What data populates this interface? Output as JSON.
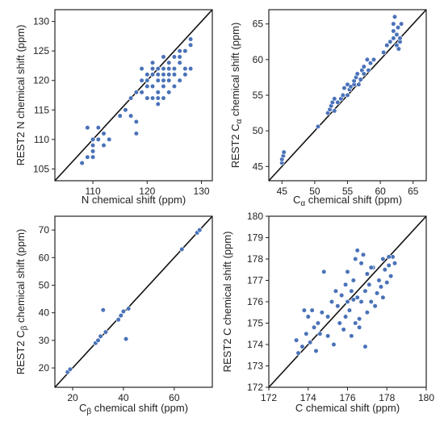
{
  "chart_data": [
    {
      "type": "scatter",
      "xlabel": "N chemical shift (ppm)",
      "ylabel": "REST2 N chemical shift (ppm)",
      "xlim": [
        103,
        132
      ],
      "ylim": [
        103,
        132
      ],
      "xticks": [
        "110",
        "120",
        "130"
      ],
      "yticks": [
        "105",
        "110",
        "115",
        "120",
        "125",
        "130"
      ],
      "reference_line": "y = x",
      "points": [
        [
          108,
          106
        ],
        [
          109,
          107
        ],
        [
          110,
          107
        ],
        [
          110,
          108
        ],
        [
          110,
          109
        ],
        [
          110,
          110
        ],
        [
          111,
          110
        ],
        [
          112,
          109
        ],
        [
          113,
          110
        ],
        [
          112,
          111
        ],
        [
          109,
          112
        ],
        [
          111,
          112
        ],
        [
          115,
          114
        ],
        [
          116,
          115
        ],
        [
          117,
          114
        ],
        [
          118,
          113
        ],
        [
          117,
          117
        ],
        [
          118,
          118
        ],
        [
          119,
          118
        ],
        [
          120,
          117
        ],
        [
          120,
          119
        ],
        [
          120,
          120
        ],
        [
          121,
          119
        ],
        [
          121,
          121
        ],
        [
          121,
          117
        ],
        [
          122,
          118
        ],
        [
          122,
          120
        ],
        [
          122,
          121
        ],
        [
          122,
          122
        ],
        [
          123,
          117
        ],
        [
          123,
          119
        ],
        [
          123,
          120
        ],
        [
          123,
          121
        ],
        [
          123,
          122
        ],
        [
          124,
          118
        ],
        [
          124,
          120
        ],
        [
          124,
          121
        ],
        [
          124,
          122
        ],
        [
          124,
          123
        ],
        [
          125,
          119
        ],
        [
          125,
          121
        ],
        [
          125,
          122
        ],
        [
          125,
          124
        ],
        [
          126,
          120
        ],
        [
          126,
          123
        ],
        [
          126,
          124
        ],
        [
          127,
          121
        ],
        [
          127,
          122
        ],
        [
          127,
          125
        ],
        [
          128,
          122
        ],
        [
          128,
          126
        ],
        [
          128,
          127
        ],
        [
          119,
          122
        ],
        [
          118,
          111
        ],
        [
          126,
          125
        ],
        [
          120,
          121
        ],
        [
          121,
          123
        ],
        [
          122,
          116
        ],
        [
          122,
          117
        ],
        [
          119,
          120
        ],
        [
          121,
          122
        ],
        [
          123,
          124
        ]
      ]
    },
    {
      "type": "scatter",
      "xlabel": "C_α chemical shift (ppm)",
      "ylabel": "REST2 C_α chemical shift (ppm)",
      "xlim": [
        43,
        67
      ],
      "ylim": [
        43,
        67
      ],
      "xticks": [
        "45",
        "50",
        "55",
        "60",
        "65"
      ],
      "yticks": [
        "45",
        "50",
        "55",
        "60",
        "65"
      ],
      "reference_line": "y = x",
      "points": [
        [
          45,
          45.5
        ],
        [
          45,
          46
        ],
        [
          45.2,
          46.5
        ],
        [
          45.3,
          47
        ],
        [
          50.5,
          50.6
        ],
        [
          52,
          52.5
        ],
        [
          52.3,
          53
        ],
        [
          52.5,
          53.5
        ],
        [
          52.7,
          54
        ],
        [
          53,
          54.5
        ],
        [
          53,
          52.8
        ],
        [
          53.5,
          54
        ],
        [
          54,
          54.5
        ],
        [
          54.3,
          55
        ],
        [
          54.5,
          56
        ],
        [
          55,
          55
        ],
        [
          55,
          56.5
        ],
        [
          55.3,
          55.8
        ],
        [
          55.5,
          56.2
        ],
        [
          56,
          56.5
        ],
        [
          56,
          57
        ],
        [
          56.3,
          57.5
        ],
        [
          56.5,
          58
        ],
        [
          56.7,
          56.5
        ],
        [
          57,
          57.2
        ],
        [
          57.2,
          58.5
        ],
        [
          57.5,
          58
        ],
        [
          57.5,
          59
        ],
        [
          58,
          60
        ],
        [
          58.2,
          58.5
        ],
        [
          58.5,
          59.5
        ],
        [
          59,
          60
        ],
        [
          60.5,
          61
        ],
        [
          61,
          62
        ],
        [
          61.5,
          62.5
        ],
        [
          62,
          63
        ],
        [
          62,
          64
        ],
        [
          62,
          65
        ],
        [
          62.2,
          66
        ],
        [
          62.5,
          63.5
        ],
        [
          62.5,
          62
        ],
        [
          62.7,
          64.5
        ],
        [
          62.8,
          61.5
        ],
        [
          63,
          62.5
        ],
        [
          63,
          63
        ],
        [
          63.2,
          65
        ]
      ]
    },
    {
      "type": "scatter",
      "xlabel": "C_β chemical shift (ppm)",
      "ylabel": "REST2 C_β chemical shift (ppm)",
      "xlim": [
        13,
        75
      ],
      "ylim": [
        13,
        75
      ],
      "xticks": [
        "20",
        "40",
        "60"
      ],
      "yticks": [
        "20",
        "30",
        "40",
        "50",
        "60",
        "70"
      ],
      "reference_line": "y = x",
      "points": [
        [
          18,
          18.5
        ],
        [
          19,
          19.5
        ],
        [
          29,
          29
        ],
        [
          30,
          30
        ],
        [
          31,
          31.5
        ],
        [
          32,
          41
        ],
        [
          33,
          33
        ],
        [
          38,
          37.5
        ],
        [
          39,
          39
        ],
        [
          40,
          40.5
        ],
        [
          41,
          30.5
        ],
        [
          42,
          41.5
        ],
        [
          63,
          63
        ],
        [
          69,
          69
        ],
        [
          70,
          70
        ]
      ]
    },
    {
      "type": "scatter",
      "xlabel": "C chemical shift (ppm)",
      "ylabel": "REST2 C chemical shift (ppm)",
      "xlim": [
        172,
        180
      ],
      "ylim": [
        172,
        180
      ],
      "xticks": [
        "172",
        "174",
        "176",
        "178",
        "180"
      ],
      "yticks": [
        "172",
        "173",
        "174",
        "175",
        "176",
        "177",
        "178",
        "179",
        "180"
      ],
      "reference_line": "y = x",
      "points": [
        [
          173.4,
          174.2
        ],
        [
          173.5,
          173.6
        ],
        [
          173.7,
          173.9
        ],
        [
          173.8,
          175.6
        ],
        [
          173.9,
          174.5
        ],
        [
          174,
          175.3
        ],
        [
          174.1,
          174.1
        ],
        [
          174.2,
          175.6
        ],
        [
          174.3,
          174.8
        ],
        [
          174.5,
          175
        ],
        [
          174.6,
          174.5
        ],
        [
          174.7,
          175.5
        ],
        [
          174.8,
          177.4
        ],
        [
          175,
          175.3
        ],
        [
          175,
          174.4
        ],
        [
          175.2,
          176
        ],
        [
          175.3,
          174
        ],
        [
          175.5,
          175.8
        ],
        [
          175.6,
          175
        ],
        [
          175.7,
          176.3
        ],
        [
          175.8,
          174.7
        ],
        [
          175.9,
          176.8
        ],
        [
          176,
          176
        ],
        [
          176,
          177.4
        ],
        [
          176.1,
          175.6
        ],
        [
          176.2,
          176.5
        ],
        [
          176.3,
          177
        ],
        [
          176.4,
          178
        ],
        [
          176.4,
          175
        ],
        [
          176.5,
          178.4
        ],
        [
          176.5,
          176.2
        ],
        [
          176.6,
          174.8
        ],
        [
          176.7,
          177.8
        ],
        [
          176.7,
          176
        ],
        [
          176.8,
          178.2
        ],
        [
          176.9,
          176.5
        ],
        [
          177,
          175.5
        ],
        [
          177,
          177.3
        ],
        [
          177.1,
          176.8
        ],
        [
          177.2,
          176
        ],
        [
          177.3,
          177.6
        ],
        [
          177.4,
          175.8
        ],
        [
          177.5,
          176.4
        ],
        [
          177.6,
          177
        ],
        [
          177.7,
          176.7
        ],
        [
          177.8,
          178
        ],
        [
          177.9,
          177.5
        ],
        [
          178,
          176.9
        ],
        [
          178.1,
          177.7
        ],
        [
          178.2,
          177.2
        ],
        [
          178.3,
          178.1
        ],
        [
          178.4,
          177.8
        ],
        [
          176.9,
          173.9
        ],
        [
          174.4,
          173.7
        ],
        [
          175.4,
          176.5
        ],
        [
          176.3,
          176.1
        ],
        [
          175.9,
          175.3
        ],
        [
          176.2,
          174.4
        ],
        [
          176.6,
          175.2
        ],
        [
          177.2,
          177.6
        ],
        [
          177.8,
          176.2
        ],
        [
          178.1,
          178.1
        ]
      ]
    }
  ]
}
